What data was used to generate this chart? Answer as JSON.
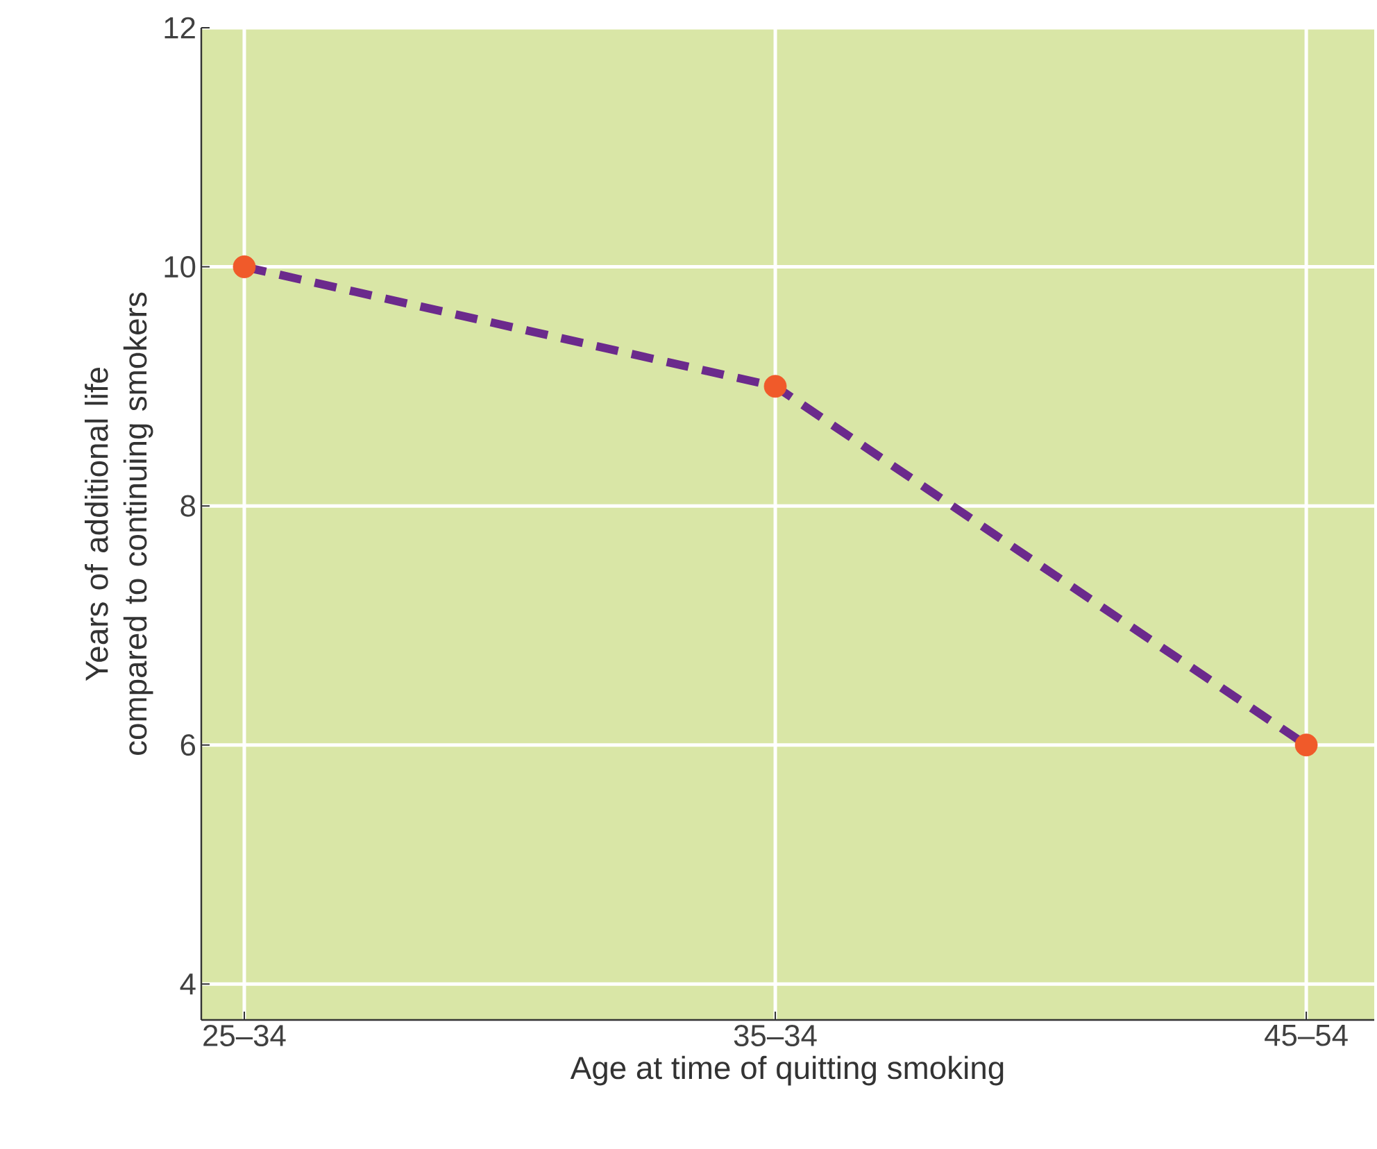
{
  "chart_data": {
    "type": "line",
    "xlabel": "Age at time of quitting smoking",
    "ylabel": "Years of additional life compared to continuing smokers",
    "categories": [
      "25–34",
      "35–34",
      "45–54"
    ],
    "series": [
      {
        "color": "#6b2a8c",
        "colors": [
          "#f05a2a",
          "#f05a2a",
          "#f05a2a"
        ],
        "values": [
          10,
          9,
          6
        ]
      }
    ],
    "ylim": [
      3.7,
      12
    ],
    "yticks": [
      4,
      6,
      8,
      10,
      12
    ],
    "grid": true,
    "marker": "circle",
    "line_style": "dashed"
  }
}
